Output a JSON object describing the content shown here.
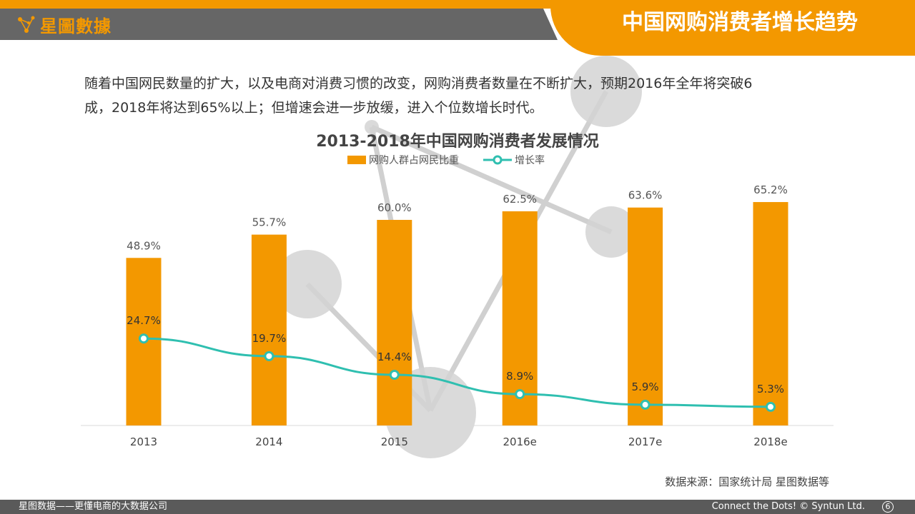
{
  "brand": {
    "logo_text": "星圖數據",
    "accent": "#f39800",
    "logo_icon": "network-dots-icon"
  },
  "page_title": "中国网购消费者增长趋势",
  "intro": {
    "line1": "随着中国网民数量的扩大，以及电商对消费习惯的改变，网购消费者数量在不断扩大，预期2016年全年将突破6",
    "line2": "成，2018年将达到65%以上；但增速会进一步放缓，进入个位数增长时代。"
  },
  "chart_data": {
    "type": "bar",
    "title": "2013-2018年中国网购消费者发展情况",
    "categories": [
      "2013",
      "2014",
      "2015",
      "2016e",
      "2017e",
      "2018e"
    ],
    "series": [
      {
        "name": "网购人群占网民比重",
        "type": "bar",
        "color": "#f39800",
        "values": [
          48.9,
          55.7,
          60.0,
          62.5,
          63.6,
          65.2
        ],
        "labels": [
          "48.9%",
          "55.7%",
          "60.0%",
          "62.5%",
          "63.6%",
          "65.2%"
        ]
      },
      {
        "name": "增长率",
        "type": "line",
        "color": "#2fbfb0",
        "values": [
          24.7,
          19.7,
          14.4,
          8.9,
          5.9,
          5.3
        ],
        "labels": [
          "24.7%",
          "19.7%",
          "14.4%",
          "8.9%",
          "5.9%",
          "5.3%"
        ]
      }
    ],
    "ylim": [
      0,
      100
    ],
    "legend_position": "top-center",
    "grid": false
  },
  "source": "数据来源：国家统计局  星图数据等",
  "footer": {
    "left": "星图数据——更懂电商的大数据公司",
    "right": "Connect the Dots! © Syntun Ltd.",
    "page_number": "6"
  }
}
